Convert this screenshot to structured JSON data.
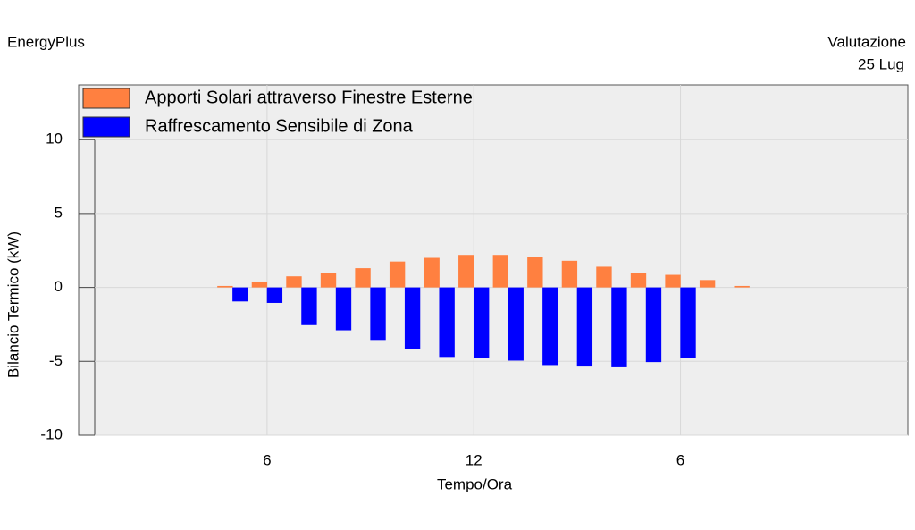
{
  "chart_data": {
    "type": "bar",
    "source": "EnergyPlus",
    "header_lines": [
      "Valutazione",
      "25 Lug"
    ],
    "xlabel": "Tempo/Ora",
    "ylabel": "Bilancio Termico (kW)",
    "x": [
      5,
      6,
      7,
      8,
      9,
      10,
      11,
      12,
      13,
      14,
      15,
      16,
      17,
      18,
      19,
      20
    ],
    "series": [
      {
        "name": "Apporti Solari attraverso Finestre Esterne",
        "color": "#ff8040",
        "values": [
          0.1,
          0.4,
          0.75,
          0.95,
          1.3,
          1.75,
          2.0,
          2.2,
          2.2,
          2.05,
          1.8,
          1.4,
          1.0,
          0.85,
          0.5,
          0.1
        ]
      },
      {
        "name": "Raffrescamento Sensibile di Zona",
        "color": "#0000ff",
        "values": [
          -0.95,
          -1.05,
          -2.55,
          -2.9,
          -3.55,
          -4.15,
          -4.7,
          -4.8,
          -4.95,
          -5.25,
          -5.35,
          -5.4,
          -5.05,
          -4.8,
          null,
          null
        ]
      }
    ],
    "xlim": [
      0.53,
      24.6
    ],
    "xticks": [
      6,
      12,
      {
        "value": 18,
        "label": "6"
      }
    ],
    "ylim": [
      -10,
      13.7
    ],
    "yticks": [
      -10,
      -5,
      0,
      5,
      10
    ],
    "grid": true,
    "legend": "upper left"
  }
}
